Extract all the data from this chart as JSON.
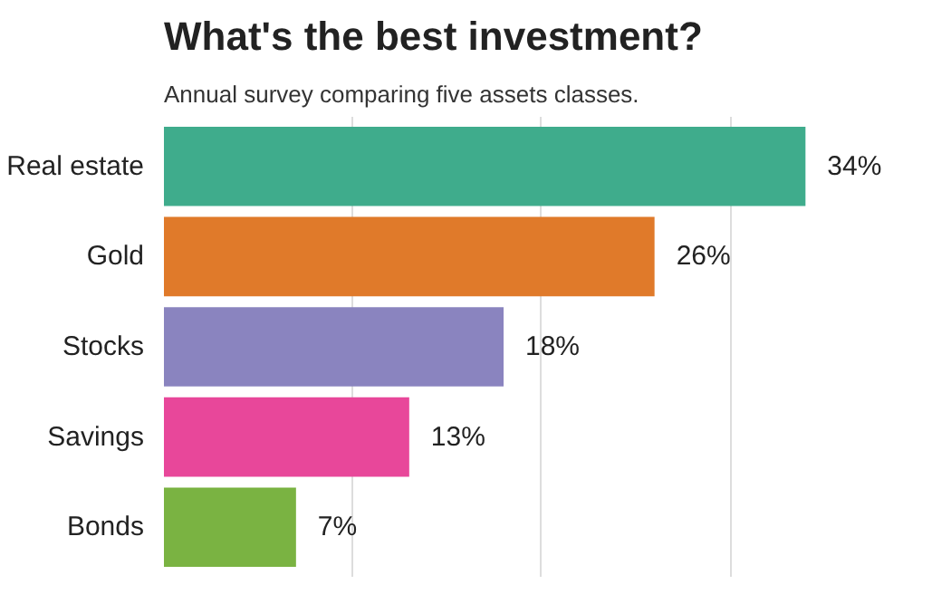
{
  "chart_data": {
    "type": "bar",
    "orientation": "horizontal",
    "title": "What's the best investment?",
    "subtitle": "Annual survey comparing five assets classes.",
    "categories": [
      "Real estate",
      "Gold",
      "Stocks",
      "Savings",
      "Bonds"
    ],
    "values": [
      34,
      26,
      18,
      13,
      7
    ],
    "colors": [
      "#3fac8c",
      "#e07a2a",
      "#8a84bf",
      "#e8479a",
      "#7ab342"
    ],
    "value_labels": [
      "34%",
      "26%",
      "18%",
      "13%",
      "7%"
    ],
    "xticks": [
      {
        "value": 10,
        "label": null
      },
      {
        "value": 20,
        "label": null
      },
      {
        "value": 30,
        "label": null
      }
    ],
    "grid": "x",
    "tick_labels": "y"
  }
}
